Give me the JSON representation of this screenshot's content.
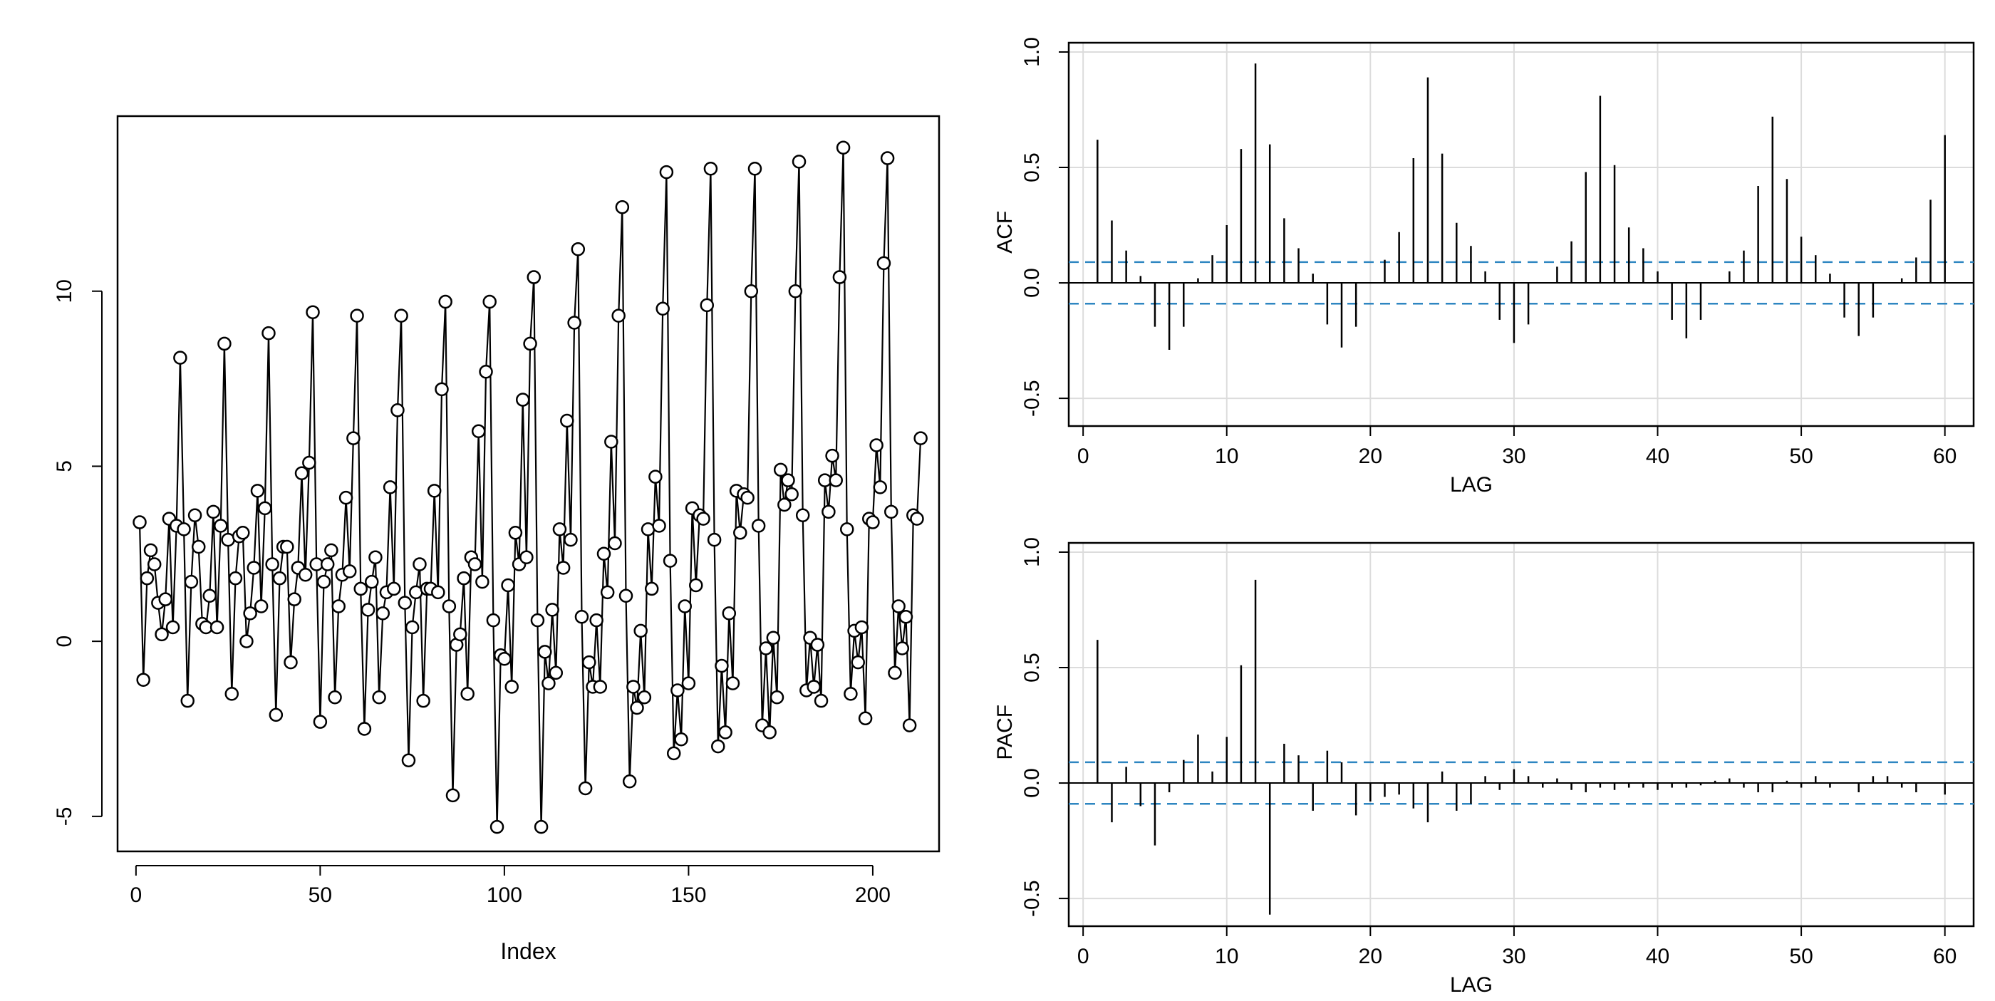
{
  "chart_data": [
    {
      "id": "series",
      "type": "line",
      "xlabel": "Index",
      "ylabel": "",
      "title": "",
      "xlim": [
        -5,
        218
      ],
      "ylim": [
        -6,
        15
      ],
      "xticks": [
        0,
        50,
        100,
        150,
        200
      ],
      "yticks": [
        -5,
        0,
        5,
        10
      ],
      "markers": "open-circle",
      "line_color": "#000000",
      "x_start": 1,
      "values": [
        3.4,
        -1.1,
        1.8,
        2.6,
        2.2,
        1.1,
        0.2,
        1.2,
        3.5,
        0.4,
        3.3,
        8.1,
        3.2,
        -1.7,
        1.7,
        3.6,
        2.7,
        0.5,
        0.4,
        1.3,
        3.7,
        0.4,
        3.3,
        8.5,
        2.9,
        -1.5,
        1.8,
        3.0,
        3.1,
        0.0,
        0.8,
        2.1,
        4.3,
        1.0,
        3.8,
        8.8,
        2.2,
        -2.1,
        1.8,
        2.7,
        2.7,
        -0.6,
        1.2,
        2.1,
        4.8,
        1.9,
        5.1,
        9.4,
        2.2,
        -2.3,
        1.7,
        2.2,
        2.6,
        -1.6,
        1.0,
        1.9,
        4.1,
        2.0,
        5.8,
        9.3,
        1.5,
        -2.5,
        0.9,
        1.7,
        2.4,
        -1.6,
        0.8,
        1.4,
        4.4,
        1.5,
        6.6,
        9.3,
        1.1,
        -3.4,
        0.4,
        1.4,
        2.2,
        -1.7,
        1.5,
        1.5,
        4.3,
        1.4,
        7.2,
        9.7,
        1.0,
        -4.4,
        -0.1,
        0.2,
        1.8,
        -1.5,
        2.4,
        2.2,
        6.0,
        1.7,
        7.7,
        9.7,
        0.6,
        -5.3,
        -0.4,
        -0.5,
        1.6,
        -1.3,
        3.1,
        2.2,
        6.9,
        2.4,
        8.5,
        10.4,
        0.6,
        -5.3,
        -0.3,
        -1.2,
        0.9,
        -0.9,
        3.2,
        2.1,
        6.3,
        2.9,
        9.1,
        11.2,
        0.7,
        -4.2,
        -0.6,
        -1.3,
        0.6,
        -1.3,
        2.5,
        1.4,
        5.7,
        2.8,
        9.3,
        12.4,
        1.3,
        -4.0,
        -1.3,
        -1.9,
        0.3,
        -1.6,
        3.2,
        1.5,
        4.7,
        3.3,
        9.5,
        13.4,
        2.3,
        -3.2,
        -1.4,
        -2.8,
        1.0,
        -1.2,
        3.8,
        1.6,
        3.6,
        3.5,
        9.6,
        13.5,
        2.9,
        -3.0,
        -0.7,
        -2.6,
        0.8,
        -1.2,
        4.3,
        3.1,
        4.2,
        4.1,
        10.0,
        13.5,
        3.3,
        -2.4,
        -0.2,
        -2.6,
        0.1,
        -1.6,
        4.9,
        3.9,
        4.6,
        4.2,
        10.0,
        13.7,
        3.6,
        -1.4,
        0.1,
        -1.3,
        -0.1,
        -1.7,
        4.6,
        3.7,
        5.3,
        4.6,
        10.4,
        14.1,
        3.2,
        -1.5,
        0.3,
        -0.6,
        0.4,
        -2.2,
        3.5,
        3.4,
        5.6,
        4.4,
        10.8,
        13.8,
        3.7,
        -0.9,
        1.0,
        -0.2,
        0.7,
        -2.4,
        3.6,
        3.5,
        5.8
      ]
    },
    {
      "id": "acf",
      "type": "bar",
      "ylabel": "ACF",
      "xlabel": "LAG",
      "title": "",
      "xlim": [
        -1,
        62
      ],
      "ylim": [
        -0.62,
        1.04
      ],
      "xticks": [
        0,
        10,
        20,
        30,
        40,
        50,
        60
      ],
      "yticks": [
        -0.5,
        0.0,
        0.5,
        1.0
      ],
      "ytick_labels": [
        "-0.5",
        "0.0",
        "0.5",
        "1.0"
      ],
      "grid": true,
      "confidence_band": 0.09,
      "band_color": "#2e86c1",
      "x_start": 1,
      "values": [
        0.62,
        0.27,
        0.14,
        0.03,
        -0.19,
        -0.29,
        -0.19,
        0.02,
        0.12,
        0.25,
        0.58,
        0.95,
        0.6,
        0.28,
        0.15,
        0.04,
        -0.18,
        -0.28,
        -0.19,
        0.0,
        0.1,
        0.22,
        0.54,
        0.89,
        0.56,
        0.26,
        0.16,
        0.05,
        -0.16,
        -0.26,
        -0.18,
        0.0,
        0.07,
        0.18,
        0.48,
        0.81,
        0.51,
        0.24,
        0.15,
        0.05,
        -0.16,
        -0.24,
        -0.16,
        0.0,
        0.05,
        0.14,
        0.42,
        0.72,
        0.45,
        0.2,
        0.12,
        0.04,
        -0.15,
        -0.23,
        -0.15,
        0.0,
        0.02,
        0.11,
        0.36,
        0.64
      ]
    },
    {
      "id": "pacf",
      "type": "bar",
      "ylabel": "PACF",
      "xlabel": "LAG",
      "title": "",
      "xlim": [
        -1,
        62
      ],
      "ylim": [
        -0.62,
        1.04
      ],
      "xticks": [
        0,
        10,
        20,
        30,
        40,
        50,
        60
      ],
      "yticks": [
        -0.5,
        0.0,
        0.5,
        1.0
      ],
      "ytick_labels": [
        "-0.5",
        "0.0",
        "0.5",
        "1.0"
      ],
      "grid": true,
      "confidence_band": 0.09,
      "band_color": "#2e86c1",
      "x_start": 1,
      "values": [
        0.62,
        -0.17,
        0.07,
        -0.1,
        -0.27,
        -0.04,
        0.1,
        0.21,
        0.05,
        0.2,
        0.51,
        0.88,
        -0.57,
        0.17,
        0.12,
        -0.12,
        0.14,
        0.09,
        -0.14,
        -0.08,
        -0.06,
        -0.05,
        -0.11,
        -0.17,
        0.05,
        -0.12,
        -0.09,
        0.03,
        -0.03,
        0.06,
        0.03,
        -0.02,
        0.02,
        -0.03,
        -0.04,
        -0.02,
        -0.03,
        -0.02,
        -0.02,
        -0.03,
        -0.02,
        -0.02,
        -0.01,
        0.01,
        0.02,
        -0.02,
        -0.04,
        -0.04,
        0.01,
        -0.02,
        0.03,
        -0.02,
        0.0,
        -0.04,
        0.03,
        0.03,
        -0.02,
        -0.04,
        0.0,
        -0.05
      ]
    }
  ]
}
